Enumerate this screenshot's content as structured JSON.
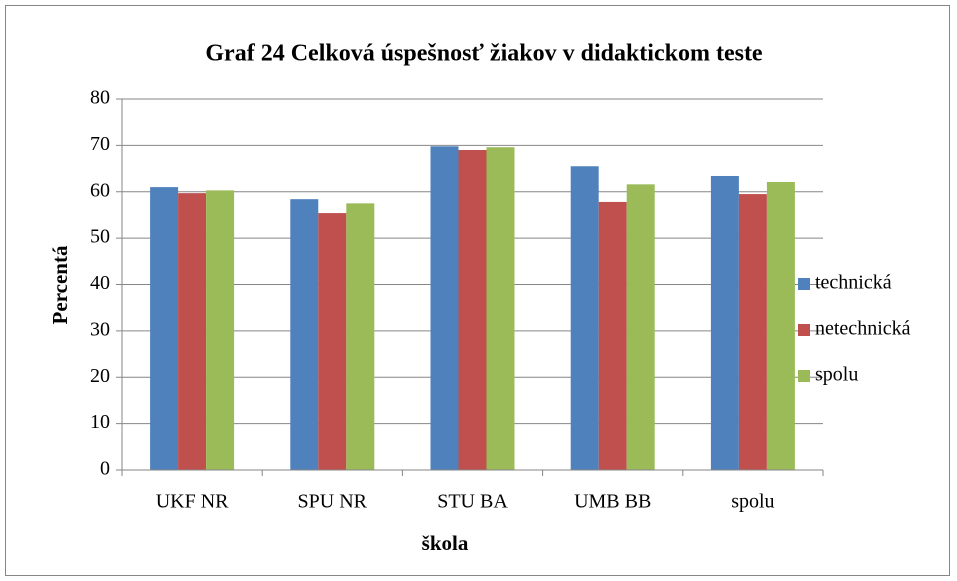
{
  "chart_data": {
    "type": "bar",
    "title": "Graf 24 Celková úspešnosť žiakov v didaktickom teste",
    "x_label": "škola",
    "y_label": "Percentá",
    "categories": [
      "UKF NR",
      "SPU NR",
      "STU BA",
      "UMB BB",
      "spolu"
    ],
    "series": [
      {
        "name": "technická",
        "color": "#4f81bd",
        "values": [
          61.0,
          58.4,
          69.8,
          65.5,
          63.4
        ]
      },
      {
        "name": "netechnická",
        "color": "#c0504d",
        "values": [
          59.7,
          55.4,
          69.0,
          57.8,
          59.5
        ]
      },
      {
        "name": "spolu",
        "color": "#9bbb59",
        "values": [
          60.3,
          57.5,
          69.6,
          61.6,
          62.1
        ]
      }
    ],
    "ylim": [
      0,
      80
    ],
    "yticks": [
      0,
      10,
      20,
      30,
      40,
      50,
      60,
      70,
      80
    ],
    "grid": true,
    "legend": "right"
  }
}
